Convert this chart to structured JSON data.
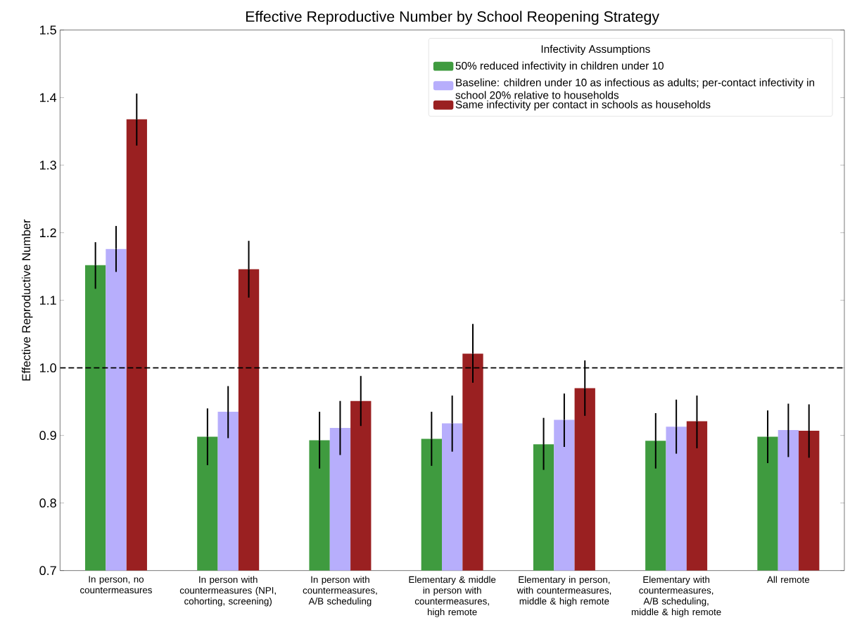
{
  "chart_data": {
    "type": "bar",
    "title": "Effective Reproductive Number by School Reopening Strategy",
    "ylabel": "Effective Reproductive Number",
    "legend_title": "Infectivity Assumptions",
    "categories": [
      "In person, no countermeasures",
      "In person with countermeasures (NPI, cohorting, screening)",
      "In person with countermeasures, A/B scheduling",
      "Elementary & middle in person with countermeasures, high remote",
      "Elementary in person, with countermeasures, middle & high remote",
      "Elementary with countermeasures, A/B scheduling, middle & high remote",
      "All remote"
    ],
    "series": [
      {
        "name": "50% reduced infectivity in children under 10",
        "color": "#3f9b3f",
        "values": [
          1.152,
          0.898,
          0.893,
          0.895,
          0.887,
          0.892,
          0.898
        ],
        "errors": [
          [
            1.117,
            1.186
          ],
          [
            0.856,
            0.94
          ],
          [
            0.851,
            0.935
          ],
          [
            0.855,
            0.935
          ],
          [
            0.849,
            0.926
          ],
          [
            0.851,
            0.933
          ],
          [
            0.859,
            0.937
          ]
        ]
      },
      {
        "name": "Baseline: children under 10 as infectious as adults; per-contact infectivity in school 20% relative to households",
        "color": "#b7aefc",
        "values": [
          1.176,
          0.935,
          0.911,
          0.918,
          0.923,
          0.913,
          0.908
        ],
        "errors": [
          [
            1.142,
            1.21
          ],
          [
            0.896,
            0.973
          ],
          [
            0.871,
            0.951
          ],
          [
            0.876,
            0.959
          ],
          [
            0.883,
            0.962
          ],
          [
            0.873,
            0.953
          ],
          [
            0.868,
            0.947
          ]
        ]
      },
      {
        "name": "Same infectivity per contact in schools as households",
        "color": "#9a2021",
        "values": [
          1.368,
          1.146,
          0.951,
          1.021,
          0.97,
          0.921,
          0.907
        ],
        "errors": [
          [
            1.329,
            1.406
          ],
          [
            1.104,
            1.188
          ],
          [
            0.914,
            0.988
          ],
          [
            0.978,
            1.065
          ],
          [
            0.929,
            1.011
          ],
          [
            0.881,
            0.959
          ],
          [
            0.867,
            0.946
          ]
        ]
      }
    ],
    "ylim": [
      0.7,
      1.5
    ],
    "yticks": [
      0.7,
      0.8,
      0.9,
      {
        "value": 1.0,
        "label": "1.0"
      },
      1.1,
      1.2,
      1.3,
      1.4,
      1.5
    ],
    "ref_lines": [
      {
        "axis": "y",
        "value": 1.0,
        "color": "#000000",
        "line_style": "dashed"
      }
    ],
    "legend": "top right"
  }
}
